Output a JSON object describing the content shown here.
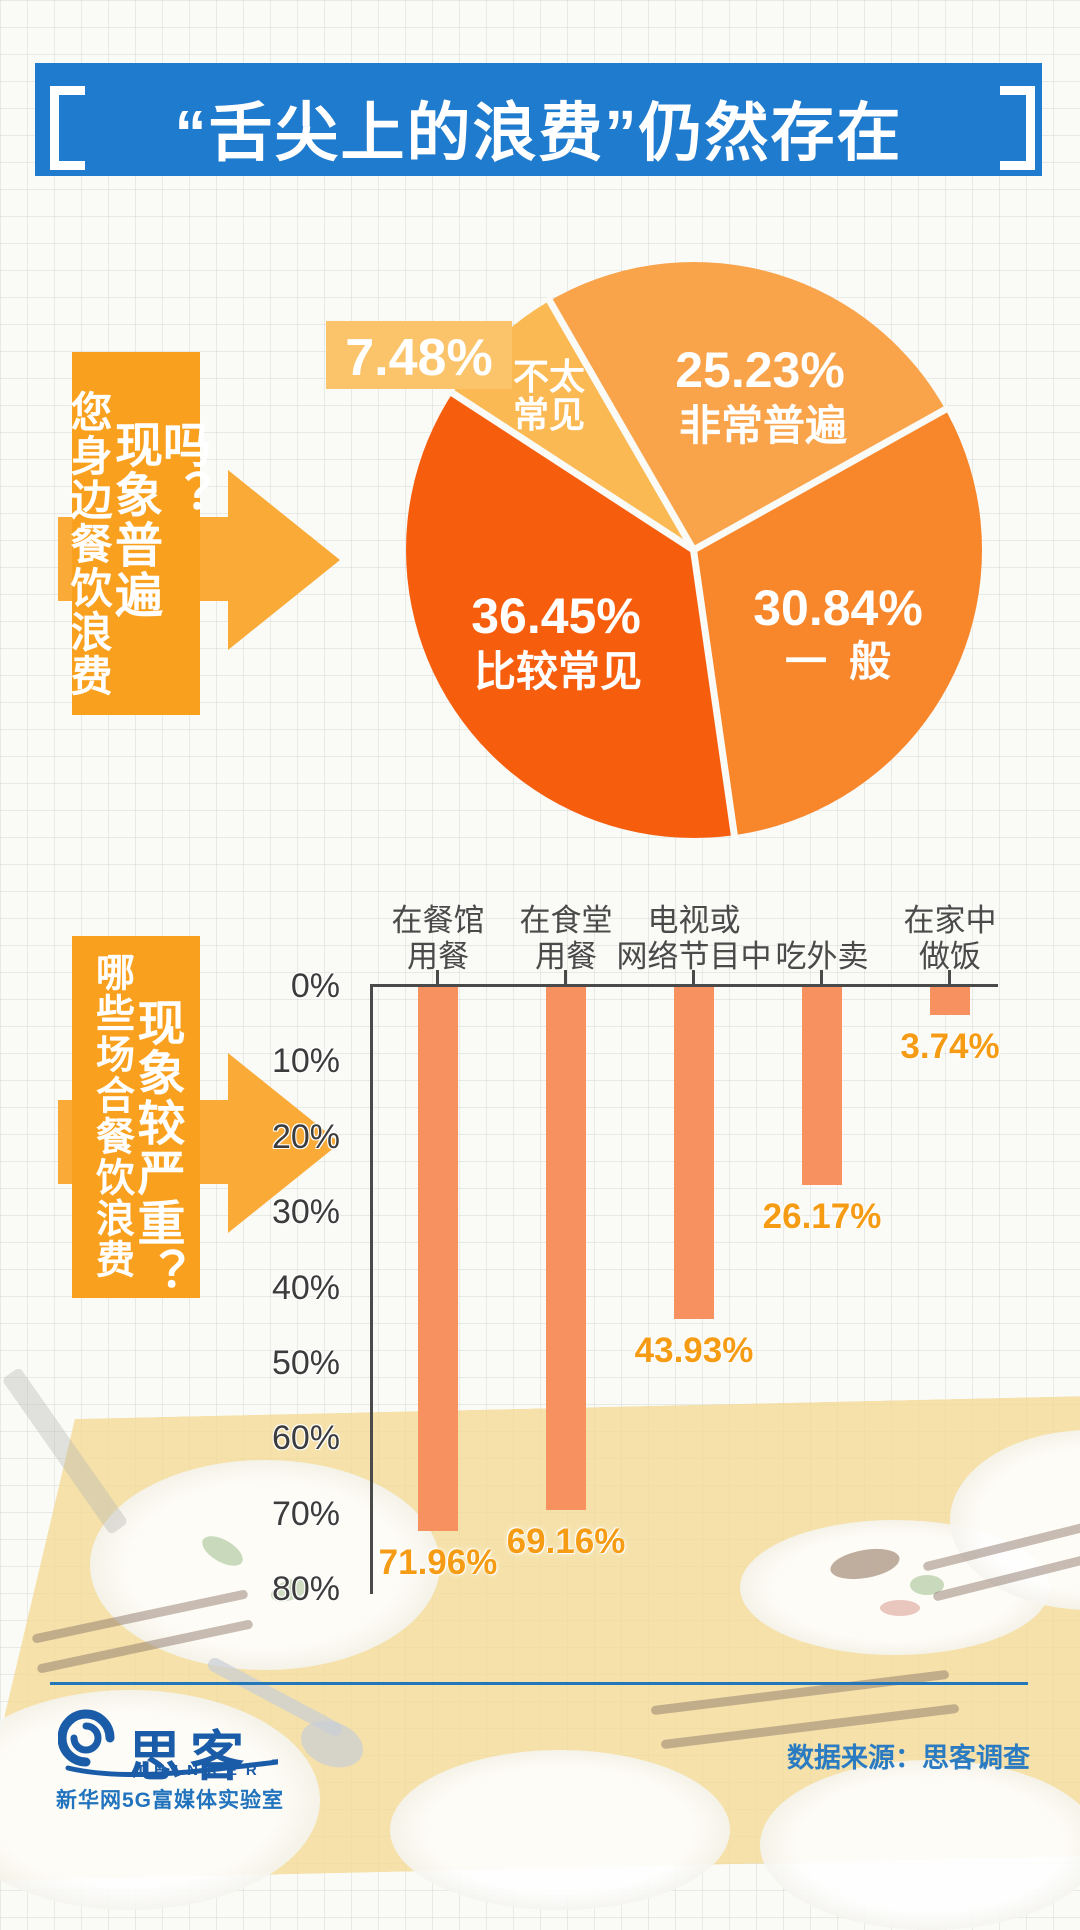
{
  "header": {
    "title": "“舌尖上的浪费”仍然存在"
  },
  "section_pie": {
    "label_col_small": "您身边餐饮浪费",
    "label_col_large": "现象普遍吗？"
  },
  "section_bar": {
    "label_col_small": "哪些场合餐饮浪费",
    "label_col_large": "现象较严重？"
  },
  "chart_data": [
    {
      "type": "pie",
      "question": "您身边餐饮浪费现象普遍吗？",
      "start_angle_deg": -30,
      "slices": [
        {
          "label": "非常普遍",
          "value": 25.23,
          "display": "25.23%",
          "color": "#f9a34a"
        },
        {
          "label": "一般",
          "value": 30.84,
          "display": "30.84%",
          "color": "#f8862b"
        },
        {
          "label": "比较常见",
          "value": 36.45,
          "display": "36.45%",
          "color": "#f65e0e"
        },
        {
          "label": "不太常见",
          "value": 7.48,
          "display": "7.48%",
          "color": "#fbb954"
        }
      ],
      "callout": {
        "display": "7.48%",
        "color": "#fbc46a"
      },
      "label_line1": "不太",
      "label_line2": "常见"
    },
    {
      "type": "bar",
      "question": "哪些场合餐饮浪费现象较严重？",
      "orientation": "downward",
      "categories": [
        "在餐馆用餐",
        "在食堂用餐",
        "电视或网络节目中",
        "吃外卖",
        "在家中做饭"
      ],
      "category_lines": [
        {
          "line1": "在餐馆",
          "line2": "用餐"
        },
        {
          "line1": "在食堂",
          "line2": "用餐"
        },
        {
          "line1": "电视或",
          "line2": "网络节目中"
        },
        {
          "line1": "吃外卖",
          "line2": ""
        },
        {
          "line1": "在家中",
          "line2": "做饭"
        }
      ],
      "values": [
        71.96,
        69.16,
        43.93,
        26.17,
        3.74
      ],
      "value_labels": [
        "71.96%",
        "69.16%",
        "43.93%",
        "26.17%",
        "3.74%"
      ],
      "ylabel_ticks": [
        "0%",
        "10%",
        "20%",
        "30%",
        "40%",
        "50%",
        "60%",
        "70%",
        "80%"
      ],
      "ylim": [
        0,
        80
      ],
      "bar_color": "#f7915f",
      "grid": false,
      "legend": "none"
    }
  ],
  "footer": {
    "logo_cn": "思客",
    "logo_en": "THINKER",
    "logo_sub": "新华网5G富媒体实验室",
    "source": "数据来源：思客调查"
  },
  "colors": {
    "banner_blue": "#1f7bce",
    "accent_orange": "#f9a11f",
    "bar_salmon": "#f7915f",
    "value_label_orange": "#f59c14",
    "footer_blue": "#2273be"
  }
}
